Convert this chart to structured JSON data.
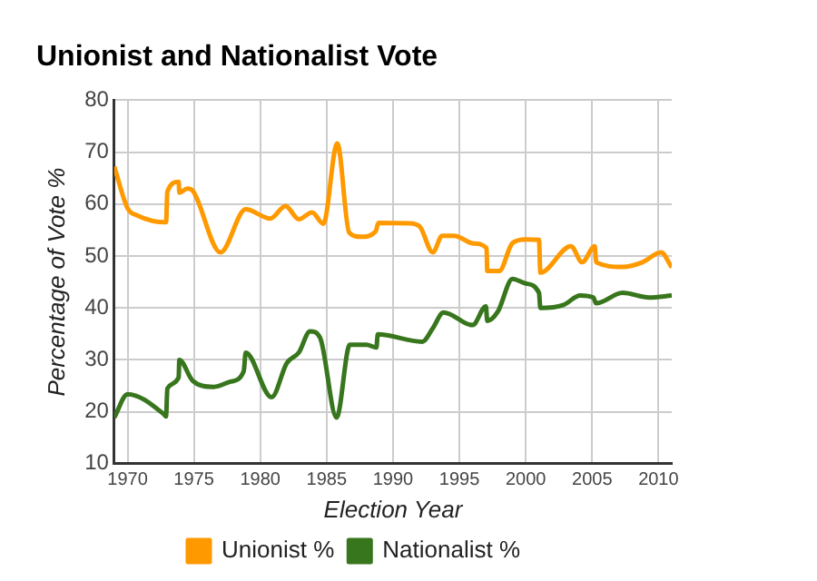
{
  "chart_data": {
    "type": "line",
    "title": "Unionist and Nationalist Vote",
    "xlabel": "Election Year",
    "ylabel": "Percentage of Vote %",
    "xlim": [
      1969,
      2011
    ],
    "xticks": [
      1970,
      1975,
      1980,
      1985,
      1990,
      1995,
      2000,
      2005,
      2010
    ],
    "ylim": [
      10,
      80
    ],
    "yticks": [
      10,
      20,
      30,
      40,
      50,
      60,
      70,
      80
    ],
    "grid": true,
    "legend": "bottom",
    "marker": "none",
    "line_style": "solid",
    "series": [
      {
        "name": "Unionist %",
        "color": "#ff9900",
        "x": [
          1969,
          1970,
          1970.75,
          1972.9,
          1973,
          1973.85,
          1973.9,
          1974.5,
          1974.9,
          1977,
          1978.9,
          1980.75,
          1981.9,
          1982.9,
          1983.9,
          1984.75,
          1985.8,
          1986.7,
          1987.6,
          1988.7,
          1988.9,
          1991.2,
          1992,
          1993,
          1993.7,
          1994.6,
          1996.1,
          1997.05,
          1997.1,
          1998,
          1999,
          2000,
          2001,
          2001.1,
          2003.4,
          2004.25,
          2005.2,
          2005.3,
          2007.3,
          2008.8,
          2010.2,
          2011
        ],
        "values": [
          67.2,
          59.2,
          57.8,
          56.5,
          62.4,
          64.3,
          62.2,
          63,
          62.6,
          50.7,
          59,
          57.2,
          59.6,
          57.1,
          58.4,
          56.2,
          71.7,
          54.5,
          53.7,
          54.8,
          56.4,
          56.3,
          55.7,
          50.7,
          53.9,
          53.9,
          52.4,
          51.5,
          47.1,
          47.1,
          52.5,
          53.2,
          53.1,
          46.8,
          51.9,
          48.8,
          51.9,
          48.8,
          47.9,
          48.8,
          50.7,
          47.8
        ]
      },
      {
        "name": "Nationalist %",
        "color": "#38761d",
        "x": [
          1969,
          1970,
          1972.75,
          1972.9,
          1973,
          1973.85,
          1973.9,
          1974.9,
          1976.5,
          1977.75,
          1978.75,
          1978.9,
          1980.85,
          1982,
          1982.9,
          1983.75,
          1984.5,
          1985.75,
          1986.75,
          1988,
          1988.75,
          1988.85,
          1992.2,
          1993,
          1993.8,
          1996,
          1997,
          1997.1,
          1997.9,
          1999,
          2000,
          2001,
          2001.1,
          2002.85,
          2004.1,
          2005.1,
          2005.3,
          2007.3,
          2009.3,
          2011
        ],
        "values": [
          18.9,
          23.4,
          19.5,
          19.1,
          24.5,
          26.6,
          30,
          26,
          24.8,
          25.8,
          27.8,
          31.4,
          22.8,
          29.4,
          31.4,
          35.5,
          34.3,
          18.9,
          32.9,
          32.9,
          32.4,
          34.9,
          33.5,
          36.1,
          39.1,
          36.7,
          40.3,
          37.5,
          39.3,
          45.6,
          44.7,
          42.9,
          40,
          40.6,
          42.4,
          42,
          40.9,
          42.9,
          42,
          42.4
        ]
      }
    ]
  }
}
